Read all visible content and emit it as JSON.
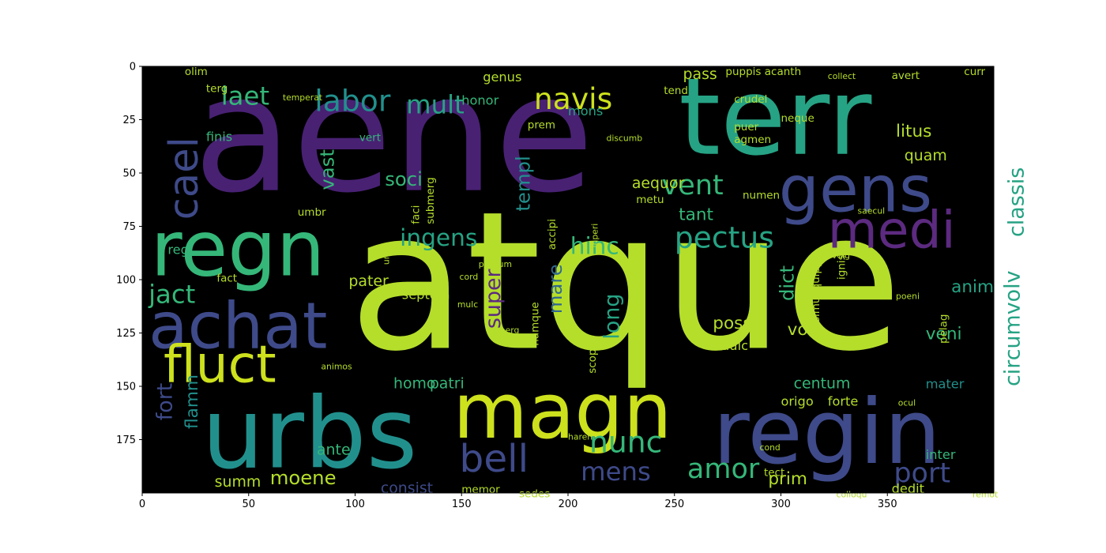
{
  "chart_data": {
    "type": "wordcloud",
    "background": "#000000",
    "xlim": [
      0,
      400
    ],
    "ylim": [
      200,
      0
    ],
    "x_ticks": [
      0,
      50,
      100,
      150,
      200,
      250,
      300,
      350
    ],
    "y_ticks": [
      0,
      25,
      50,
      75,
      100,
      125,
      150,
      175
    ],
    "palette": {
      "purple": "#482173",
      "teal": "#26a384",
      "lime": "#b5de2b",
      "blue": "#3e4a89",
      "green": "#35b779",
      "violet": "#5c2a80",
      "cyan": "#21908d",
      "yellow": "#cde11d",
      "slate": "#31688e"
    },
    "words": [
      {
        "text": "atque",
        "x": 97,
        "y": 132,
        "size": 90,
        "color": "lime"
      },
      {
        "text": "aene",
        "x": 24,
        "y": 58,
        "size": 76,
        "color": "purple"
      },
      {
        "text": "terr",
        "x": 252,
        "y": 41,
        "size": 50,
        "color": "teal"
      },
      {
        "text": "urbs",
        "x": 28,
        "y": 188,
        "size": 46,
        "color": "cyan"
      },
      {
        "text": "regin",
        "x": 268,
        "y": 186,
        "size": 42,
        "color": "blue"
      },
      {
        "text": "regn",
        "x": 4,
        "y": 98,
        "size": 36,
        "color": "green"
      },
      {
        "text": "magn",
        "x": 146,
        "y": 174,
        "size": 36,
        "color": "yellow"
      },
      {
        "text": "achat",
        "x": 3,
        "y": 132,
        "size": 30,
        "color": "blue"
      },
      {
        "text": "gens",
        "x": 299,
        "y": 68,
        "size": 30,
        "color": "blue"
      },
      {
        "text": "medi",
        "x": 322,
        "y": 85,
        "size": 24,
        "color": "violet"
      },
      {
        "text": "fluct",
        "x": 10,
        "y": 148,
        "size": 24,
        "color": "yellow"
      },
      {
        "text": "bell",
        "x": 149,
        "y": 190,
        "size": 18,
        "color": "blue"
      },
      {
        "text": "navis",
        "x": 184,
        "y": 20,
        "size": 14,
        "color": "yellow"
      },
      {
        "text": "labor",
        "x": 81,
        "y": 21,
        "size": 14,
        "color": "cyan"
      },
      {
        "text": "mult",
        "x": 124,
        "y": 22,
        "size": 12,
        "color": "teal"
      },
      {
        "text": "laet",
        "x": 37,
        "y": 18,
        "size": 12,
        "color": "green"
      },
      {
        "text": "pectus",
        "x": 250,
        "y": 85,
        "size": 14,
        "color": "teal"
      },
      {
        "text": "vent",
        "x": 244,
        "y": 60,
        "size": 13,
        "color": "green"
      },
      {
        "text": "ingens",
        "x": 121,
        "y": 84,
        "size": 11,
        "color": "teal"
      },
      {
        "text": "hinc",
        "x": 201,
        "y": 88,
        "size": 11,
        "color": "green"
      },
      {
        "text": "jact",
        "x": 3,
        "y": 111,
        "size": 12,
        "color": "green"
      },
      {
        "text": "nunc",
        "x": 210,
        "y": 181,
        "size": 14,
        "color": "green"
      },
      {
        "text": "amor",
        "x": 256,
        "y": 193,
        "size": 13,
        "color": "green"
      },
      {
        "text": "mens",
        "x": 206,
        "y": 194,
        "size": 12,
        "color": "blue"
      },
      {
        "text": "port",
        "x": 353,
        "y": 195,
        "size": 13,
        "color": "blue"
      },
      {
        "text": "moene",
        "x": 60,
        "y": 196,
        "size": 9,
        "color": "lime"
      },
      {
        "text": "consist",
        "x": 112,
        "y": 200,
        "size": 7,
        "color": "blue"
      },
      {
        "text": "summ",
        "x": 34,
        "y": 197,
        "size": 7,
        "color": "lime"
      },
      {
        "text": "prim",
        "x": 294,
        "y": 196,
        "size": 8,
        "color": "lime"
      },
      {
        "text": "soci",
        "x": 114,
        "y": 56,
        "size": 9,
        "color": "green"
      },
      {
        "text": "vast",
        "x": 90,
        "y": 58,
        "size": 9,
        "color": "green",
        "rotate": -90
      },
      {
        "text": "cael",
        "x": 26,
        "y": 72,
        "size": 19,
        "color": "blue",
        "rotate": -90
      },
      {
        "text": "templ",
        "x": 182,
        "y": 68,
        "size": 9,
        "color": "cyan",
        "rotate": -90
      },
      {
        "text": "circumvolv",
        "x": 412,
        "y": 150,
        "size": 10,
        "color": "teal",
        "rotate": -90
      },
      {
        "text": "classis",
        "x": 414,
        "y": 80,
        "size": 10,
        "color": "teal",
        "rotate": -90
      },
      {
        "text": "dict",
        "x": 306,
        "y": 110,
        "size": 9,
        "color": "green",
        "rotate": -90
      },
      {
        "text": "anim",
        "x": 380,
        "y": 106,
        "size": 8,
        "color": "teal"
      },
      {
        "text": "litus",
        "x": 354,
        "y": 33,
        "size": 8,
        "color": "lime"
      },
      {
        "text": "quam",
        "x": 358,
        "y": 44,
        "size": 7,
        "color": "lime"
      },
      {
        "text": "tant",
        "x": 252,
        "y": 72,
        "size": 8,
        "color": "green"
      },
      {
        "text": "aequor",
        "x": 230,
        "y": 57,
        "size": 7,
        "color": "lime"
      },
      {
        "text": "pass",
        "x": 254,
        "y": 6,
        "size": 7,
        "color": "lime"
      },
      {
        "text": "genus",
        "x": 160,
        "y": 7,
        "size": 6,
        "color": "lime"
      },
      {
        "text": "honor",
        "x": 150,
        "y": 18,
        "size": 6,
        "color": "green"
      },
      {
        "text": "mons",
        "x": 200,
        "y": 23,
        "size": 6,
        "color": "teal"
      },
      {
        "text": "super",
        "x": 168,
        "y": 123,
        "size": 10,
        "color": "violet",
        "rotate": -90
      },
      {
        "text": "mare",
        "x": 197,
        "y": 116,
        "size": 9,
        "color": "slate",
        "rotate": -90
      },
      {
        "text": "long",
        "x": 224,
        "y": 128,
        "size": 10,
        "color": "teal",
        "rotate": -90
      },
      {
        "text": "pater",
        "x": 97,
        "y": 103,
        "size": 7,
        "color": "lime"
      },
      {
        "text": "septem",
        "x": 122,
        "y": 109,
        "size": 6,
        "color": "lime"
      },
      {
        "text": "poss",
        "x": 268,
        "y": 123,
        "size": 8,
        "color": "lime"
      },
      {
        "text": "dulc",
        "x": 272,
        "y": 133,
        "size": 6,
        "color": "lime"
      },
      {
        "text": "volt",
        "x": 303,
        "y": 126,
        "size": 8,
        "color": "lime"
      },
      {
        "text": "veni",
        "x": 368,
        "y": 128,
        "size": 8,
        "color": "green"
      },
      {
        "text": "centum",
        "x": 306,
        "y": 151,
        "size": 7,
        "color": "green"
      },
      {
        "text": "mater",
        "x": 368,
        "y": 151,
        "size": 6,
        "color": "cyan"
      },
      {
        "text": "homo",
        "x": 118,
        "y": 151,
        "size": 7,
        "color": "green"
      },
      {
        "text": "patri",
        "x": 135,
        "y": 151,
        "size": 7,
        "color": "green"
      },
      {
        "text": "fort",
        "x": 14,
        "y": 166,
        "size": 10,
        "color": "blue",
        "rotate": -90
      },
      {
        "text": "flamm",
        "x": 26,
        "y": 170,
        "size": 8,
        "color": "cyan",
        "rotate": -90
      },
      {
        "text": "ante",
        "x": 82,
        "y": 182,
        "size": 7,
        "color": "green"
      },
      {
        "text": "origo",
        "x": 300,
        "y": 159,
        "size": 6,
        "color": "lime"
      },
      {
        "text": "forte",
        "x": 322,
        "y": 159,
        "size": 6,
        "color": "lime"
      },
      {
        "text": "dedit",
        "x": 352,
        "y": 200,
        "size": 6,
        "color": "lime"
      },
      {
        "text": "inter",
        "x": 368,
        "y": 184,
        "size": 6,
        "color": "green"
      },
      {
        "text": "memor",
        "x": 150,
        "y": 200,
        "size": 5,
        "color": "lime"
      },
      {
        "text": "sedes",
        "x": 177,
        "y": 202,
        "size": 5,
        "color": "lime"
      },
      {
        "text": "umbr",
        "x": 73,
        "y": 70,
        "size": 5,
        "color": "lime"
      },
      {
        "text": "finis",
        "x": 30,
        "y": 35,
        "size": 6,
        "color": "green"
      },
      {
        "text": "regi",
        "x": 12,
        "y": 88,
        "size": 6,
        "color": "green"
      },
      {
        "text": "fact",
        "x": 35,
        "y": 101,
        "size": 5,
        "color": "lime"
      },
      {
        "text": "vert",
        "x": 102,
        "y": 35,
        "size": 5,
        "color": "green"
      },
      {
        "text": "olim",
        "x": 20,
        "y": 4,
        "size": 5,
        "color": "lime"
      },
      {
        "text": "terg",
        "x": 30,
        "y": 12,
        "size": 5,
        "color": "lime"
      },
      {
        "text": "temperat",
        "x": 66,
        "y": 16,
        "size": 4,
        "color": "lime"
      },
      {
        "text": "puppis acanth",
        "x": 274,
        "y": 4,
        "size": 5,
        "color": "lime"
      },
      {
        "text": "collect",
        "x": 322,
        "y": 6,
        "size": 4,
        "color": "lime"
      },
      {
        "text": "avert",
        "x": 352,
        "y": 6,
        "size": 5,
        "color": "lime"
      },
      {
        "text": "curr",
        "x": 386,
        "y": 4,
        "size": 5,
        "color": "lime"
      },
      {
        "text": "tend",
        "x": 245,
        "y": 13,
        "size": 5,
        "color": "lime"
      },
      {
        "text": "crudel",
        "x": 278,
        "y": 17,
        "size": 5,
        "color": "lime"
      },
      {
        "text": "neque",
        "x": 300,
        "y": 26,
        "size": 5,
        "color": "lime"
      },
      {
        "text": "puer",
        "x": 278,
        "y": 30,
        "size": 5,
        "color": "lime"
      },
      {
        "text": "agmen",
        "x": 278,
        "y": 36,
        "size": 5,
        "color": "lime"
      },
      {
        "text": "discumb",
        "x": 218,
        "y": 35,
        "size": 4,
        "color": "lime"
      },
      {
        "text": "prem",
        "x": 181,
        "y": 29,
        "size": 5,
        "color": "lime"
      },
      {
        "text": "metu",
        "x": 232,
        "y": 64,
        "size": 5,
        "color": "lime"
      },
      {
        "text": "numen",
        "x": 282,
        "y": 62,
        "size": 5,
        "color": "lime"
      },
      {
        "text": "saecul",
        "x": 336,
        "y": 69,
        "size": 4,
        "color": "lime"
      },
      {
        "text": "accipi",
        "x": 194,
        "y": 86,
        "size": 5,
        "color": "lime",
        "rotate": -90
      },
      {
        "text": "faci",
        "x": 130,
        "y": 74,
        "size": 5,
        "color": "lime",
        "rotate": -90
      },
      {
        "text": "submerg",
        "x": 137,
        "y": 74,
        "size": 5,
        "color": "lime",
        "rotate": -90
      },
      {
        "text": "primum",
        "x": 158,
        "y": 94,
        "size": 4,
        "color": "lime"
      },
      {
        "text": "cord",
        "x": 149,
        "y": 100,
        "size": 4,
        "color": "lime"
      },
      {
        "text": "mulc",
        "x": 148,
        "y": 113,
        "size": 4,
        "color": "lime"
      },
      {
        "text": "namque",
        "x": 186,
        "y": 131,
        "size": 5,
        "color": "lime",
        "rotate": -90
      },
      {
        "text": "scopul",
        "x": 213,
        "y": 144,
        "size": 5,
        "color": "lime",
        "rotate": -90
      },
      {
        "text": "simul quippe",
        "x": 318,
        "y": 120,
        "size": 5,
        "color": "lime",
        "rotate": -90
      },
      {
        "text": "pelag",
        "x": 378,
        "y": 130,
        "size": 5,
        "color": "lime",
        "rotate": -90
      },
      {
        "text": "ignis",
        "x": 330,
        "y": 100,
        "size": 5,
        "color": "lime",
        "rotate": -90
      },
      {
        "text": "volg",
        "x": 324,
        "y": 90,
        "size": 4,
        "color": "lime"
      },
      {
        "text": "poeni",
        "x": 354,
        "y": 109,
        "size": 4,
        "color": "lime"
      },
      {
        "text": "tect",
        "x": 292,
        "y": 192,
        "size": 5,
        "color": "lime"
      },
      {
        "text": "cond",
        "x": 290,
        "y": 180,
        "size": 4,
        "color": "lime"
      },
      {
        "text": "ocul",
        "x": 355,
        "y": 159,
        "size": 4,
        "color": "lime"
      },
      {
        "text": "haren",
        "x": 200,
        "y": 175,
        "size": 4,
        "color": "lime"
      },
      {
        "text": "colloqu",
        "x": 326,
        "y": 202,
        "size": 4,
        "color": "lime"
      },
      {
        "text": "animos",
        "x": 84,
        "y": 142,
        "size": 4,
        "color": "lime"
      },
      {
        "text": "remot",
        "x": 390,
        "y": 202,
        "size": 4,
        "color": "lime"
      },
      {
        "text": "unde",
        "x": 116,
        "y": 93,
        "size": 4,
        "color": "lime",
        "rotate": -90
      },
      {
        "text": "inperi",
        "x": 214,
        "y": 85,
        "size": 4,
        "color": "lime",
        "rotate": -90
      },
      {
        "text": "perg",
        "x": 168,
        "y": 125,
        "size": 4,
        "color": "lime"
      }
    ]
  }
}
